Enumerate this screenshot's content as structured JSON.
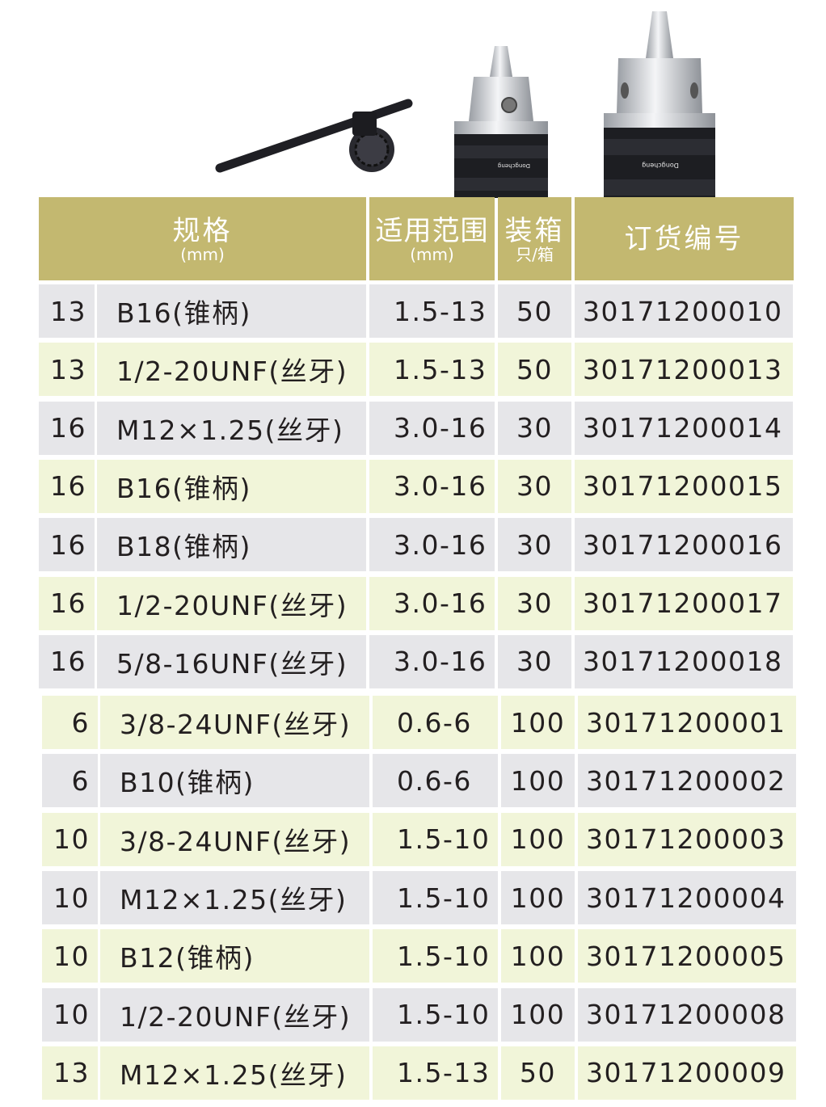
{
  "header": {
    "spec": {
      "title": "规格",
      "unit": "(mm)"
    },
    "range": {
      "title": "适用范围",
      "unit": "(mm)"
    },
    "pack": {
      "title": "装箱",
      "unit": "只/箱"
    },
    "order": {
      "title": "订货编号"
    }
  },
  "products": {
    "images": [
      "chuck-key",
      "small-drill-chuck",
      "large-drill-chuck"
    ],
    "brand_text": "Dongcheng"
  },
  "colors": {
    "header": "#c3b870",
    "row_gray": "#e6e6e9",
    "row_green": "#f1f5d9"
  },
  "rows": [
    {
      "size": "13",
      "spec": "B16(锥柄)",
      "range": "1.5-13",
      "pack": "50",
      "order": "30171200010"
    },
    {
      "size": "13",
      "spec": "1/2-20UNF(丝牙)",
      "range": "1.5-13",
      "pack": "50",
      "order": "30171200013"
    },
    {
      "size": "16",
      "spec": "M12×1.25(丝牙)",
      "range": "3.0-16",
      "pack": "30",
      "order": "30171200014"
    },
    {
      "size": "16",
      "spec": "B16(锥柄)",
      "range": "3.0-16",
      "pack": "30",
      "order": "30171200015"
    },
    {
      "size": "16",
      "spec": "B18(锥柄)",
      "range": "3.0-16",
      "pack": "30",
      "order": "30171200016"
    },
    {
      "size": "16",
      "spec": "1/2-20UNF(丝牙)",
      "range": "3.0-16",
      "pack": "30",
      "order": "30171200017"
    },
    {
      "size": "16",
      "spec": "5/8-16UNF(丝牙)",
      "range": "3.0-16",
      "pack": "30",
      "order": "30171200018"
    },
    {
      "size": "6",
      "spec": "3/8-24UNF(丝牙)",
      "range": "0.6-6",
      "pack": "100",
      "order": "30171200001"
    },
    {
      "size": "6",
      "spec": "B10(锥柄)",
      "range": "0.6-6",
      "pack": "100",
      "order": "30171200002"
    },
    {
      "size": "10",
      "spec": "3/8-24UNF(丝牙)",
      "range": "1.5-10",
      "pack": "100",
      "order": "30171200003"
    },
    {
      "size": "10",
      "spec": "M12×1.25(丝牙)",
      "range": "1.5-10",
      "pack": "100",
      "order": "30171200004"
    },
    {
      "size": "10",
      "spec": "B12(锥柄)",
      "range": "1.5-10",
      "pack": "100",
      "order": "30171200005"
    },
    {
      "size": "10",
      "spec": "1/2-20UNF(丝牙)",
      "range": "1.5-10",
      "pack": "100",
      "order": "30171200008"
    },
    {
      "size": "13",
      "spec": "M12×1.25(丝牙)",
      "range": "1.5-13",
      "pack": "50",
      "order": "30171200009"
    }
  ]
}
